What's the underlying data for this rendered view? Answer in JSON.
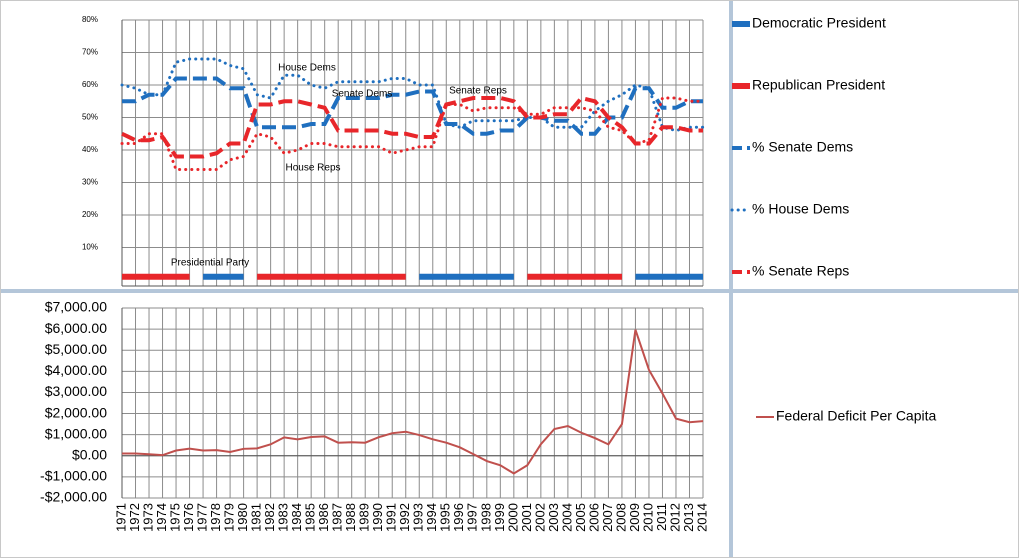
{
  "chart_data": [
    {
      "type": "line",
      "ylim": [
        0,
        80
      ],
      "yticks": [
        {
          "value": 10,
          "label": "10%"
        },
        {
          "value": 20,
          "label": "20%"
        },
        {
          "value": 30,
          "label": "30%"
        },
        {
          "value": 40,
          "label": "40%"
        },
        {
          "value": 50,
          "label": "50%"
        },
        {
          "value": 60,
          "label": "60%"
        },
        {
          "value": 70,
          "label": "70%"
        },
        {
          "value": 80,
          "label": "80%"
        }
      ],
      "grid": true,
      "legend": "right",
      "annotations": [
        "House Dems",
        "Senate Dems",
        "Senate Reps",
        "House Reps",
        "Presidential Party"
      ],
      "series": [
        {
          "name": "Democratic President",
          "color": "#1f6fbf",
          "dash": "solid",
          "values": [
            null,
            null,
            null,
            null,
            null,
            null,
            1,
            1,
            1,
            1,
            null,
            null,
            null,
            null,
            null,
            null,
            null,
            null,
            null,
            null,
            null,
            null,
            1,
            1,
            1,
            1,
            1,
            1,
            1,
            1,
            null,
            null,
            null,
            null,
            null,
            null,
            null,
            null,
            1,
            1,
            1,
            1,
            1,
            1
          ]
        },
        {
          "name": "Republican President",
          "color": "#e8262a",
          "dash": "solid",
          "values": [
            1,
            1,
            1,
            1,
            1,
            1,
            null,
            null,
            null,
            null,
            1,
            1,
            1,
            1,
            1,
            1,
            1,
            1,
            1,
            1,
            1,
            1,
            null,
            null,
            null,
            null,
            null,
            null,
            null,
            null,
            1,
            1,
            1,
            1,
            1,
            1,
            1,
            1,
            null,
            null,
            null,
            null,
            null,
            null
          ]
        },
        {
          "name": "% Senate Dems",
          "color": "#1f6fbf",
          "dash": "dashed",
          "values": [
            55,
            55,
            57,
            57,
            62,
            62,
            62,
            62,
            59,
            59,
            47,
            47,
            47,
            47,
            48,
            48,
            56,
            56,
            56,
            56,
            57,
            57,
            58,
            58,
            48,
            48,
            45,
            45,
            46,
            46,
            50,
            50,
            49,
            49,
            45,
            45,
            50,
            50,
            59,
            59,
            53,
            53,
            55,
            55
          ]
        },
        {
          "name": "% House Dems",
          "color": "#1f6fbf",
          "dash": "dotted",
          "values": [
            60,
            59,
            57,
            57,
            67,
            68,
            68,
            68,
            66,
            65,
            57,
            56,
            63,
            63,
            60,
            59,
            61,
            61,
            61,
            61,
            62,
            62,
            60,
            60,
            48,
            47,
            49,
            49,
            49,
            49,
            50,
            50,
            47,
            47,
            47,
            52,
            55,
            57,
            60,
            59,
            47,
            46,
            47,
            47
          ]
        },
        {
          "name": "% Senate Reps",
          "color": "#e8262a",
          "dash": "dashed",
          "values": [
            45,
            43,
            43,
            44,
            38,
            38,
            38,
            39,
            42,
            42,
            54,
            54,
            55,
            55,
            54,
            53,
            46,
            46,
            46,
            46,
            45,
            45,
            44,
            44,
            54,
            55,
            56,
            56,
            56,
            55,
            50,
            50,
            51,
            51,
            56,
            55,
            50,
            47,
            42,
            42,
            47,
            47,
            46,
            46
          ]
        },
        {
          "color": "#e8262a",
          "dash": "dotted",
          "values": [
            42,
            42,
            45,
            45,
            34,
            34,
            34,
            34,
            37,
            38,
            45,
            44,
            39,
            40,
            42,
            42,
            41,
            41,
            41,
            41,
            39,
            40,
            41,
            41,
            54,
            54,
            52,
            53,
            53,
            53,
            51,
            51,
            53,
            53,
            53,
            52,
            47,
            46,
            42,
            43,
            56,
            56,
            55,
            55
          ]
        }
      ]
    },
    {
      "type": "line",
      "x": [
        1971,
        1972,
        1973,
        1974,
        1975,
        1976,
        1977,
        1978,
        1979,
        1980,
        1981,
        1982,
        1983,
        1984,
        1985,
        1986,
        1987,
        1988,
        1989,
        1990,
        1991,
        1992,
        1993,
        1994,
        1995,
        1996,
        1997,
        1998,
        1999,
        2000,
        2001,
        2002,
        2003,
        2004,
        2005,
        2006,
        2007,
        2008,
        2009,
        2010,
        2011,
        2012,
        2013,
        2014
      ],
      "xlim": [
        1971,
        2014
      ],
      "ylim": [
        -2000,
        7000
      ],
      "yticks": [
        {
          "value": -2000,
          "label": "-$2,000.00"
        },
        {
          "value": -1000,
          "label": "-$1,000.00"
        },
        {
          "value": 0,
          "label": "$0.00"
        },
        {
          "value": 1000,
          "label": "$1,000.00"
        },
        {
          "value": 2000,
          "label": "$2,000.00"
        },
        {
          "value": 3000,
          "label": "$3,000.00"
        },
        {
          "value": 4000,
          "label": "$4,000.00"
        },
        {
          "value": 5000,
          "label": "$5,000.00"
        },
        {
          "value": 6000,
          "label": "$6,000.00"
        },
        {
          "value": 7000,
          "label": "$7,000.00"
        }
      ],
      "grid": true,
      "legend": "right",
      "series": [
        {
          "name": "Federal Deficit Per Capita",
          "color": "#c0504d",
          "dash": "solid",
          "values": [
            110,
            110,
            70,
            30,
            250,
            340,
            250,
            270,
            180,
            330,
            350,
            540,
            870,
            780,
            890,
            920,
            620,
            640,
            620,
            880,
            1070,
            1140,
            980,
            780,
            620,
            400,
            80,
            -250,
            -450,
            -840,
            -450,
            550,
            1270,
            1410,
            1090,
            840,
            540,
            1500,
            5970,
            4070,
            2950,
            1760,
            1590,
            1640
          ]
        }
      ]
    }
  ]
}
